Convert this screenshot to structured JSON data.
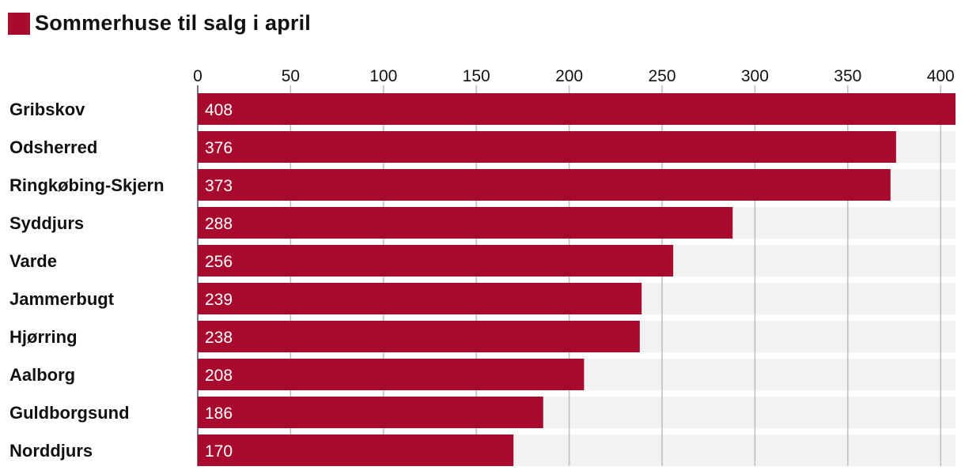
{
  "chart_data": {
    "type": "bar",
    "orientation": "horizontal",
    "title": "Sommerhuse til salg i april",
    "categories": [
      "Gribskov",
      "Odsherred",
      "Ringkøbing-Skjern",
      "Syddjurs",
      "Varde",
      "Jammerbugt",
      "Hjørring",
      "Aalborg",
      "Guldborgsund",
      "Norddjurs"
    ],
    "series": [
      {
        "name": "Sommerhuse til salg i april",
        "color": "#a80a2e",
        "values": [
          408,
          376,
          373,
          288,
          256,
          239,
          238,
          208,
          186,
          170
        ]
      }
    ],
    "xlim": [
      0,
      408
    ],
    "xticks": [
      "0",
      "50",
      "100",
      "150",
      "200",
      "250",
      "300",
      "350",
      "400"
    ],
    "grid": true,
    "legend": "top-left",
    "background_bar_color": "#f2f2f2",
    "grid_color": "#bdbdbd"
  }
}
